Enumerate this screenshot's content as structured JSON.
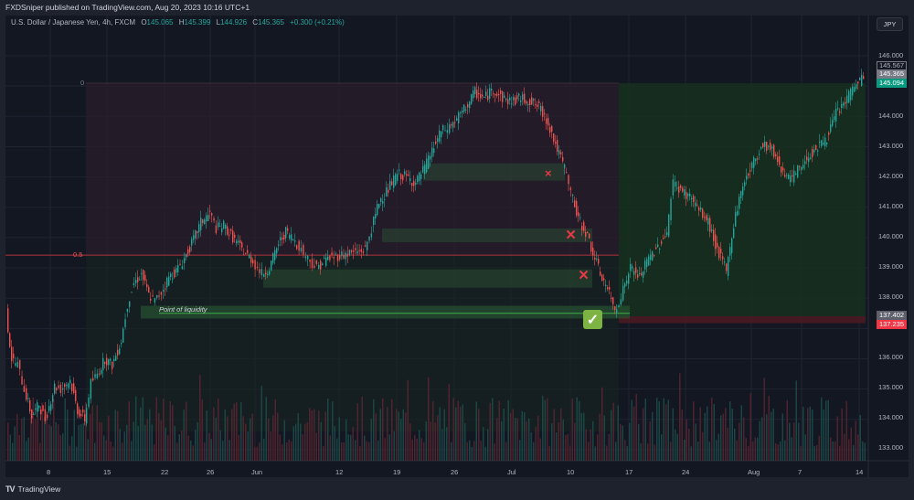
{
  "header": {
    "publish_line": "FXDSniper published on TradingView.com, Aug 20, 2023 10:16 UTC+1"
  },
  "symbol": {
    "description": "U.S. Dollar / Japanese Yen, 4h, FXCM",
    "open_label": "O",
    "open": "145.065",
    "high_label": "H",
    "high": "145.399",
    "low_label": "L",
    "low": "144.926",
    "close_label": "C",
    "close": "145.365",
    "change": "+0.300 (+0.21%)"
  },
  "currency_button": "JPY",
  "price_axis": {
    "ticks": [
      "146.000",
      "144.000",
      "143.000",
      "142.000",
      "141.000",
      "140.000",
      "139.000",
      "138.000",
      "136.000",
      "135.000",
      "134.000",
      "133.000"
    ],
    "tags": {
      "high_marker": "145.567",
      "last_price": "145.365",
      "target": "145.094",
      "entry": "137.402",
      "stop": "137.235"
    }
  },
  "time_axis": {
    "ticks": [
      "8",
      "15",
      "22",
      "26",
      "Jun",
      "12",
      "19",
      "26",
      "Jul",
      "10",
      "17",
      "24",
      "Aug",
      "7",
      "14"
    ]
  },
  "drawings": {
    "fib_level_0": "0",
    "fib_level_05": "0.5",
    "liquidity_label": "Point of liquidity",
    "failed_zone_marks": [
      "×",
      "×",
      "×"
    ],
    "success_mark": "✓"
  },
  "colors": {
    "bull": "#26a69a",
    "bear": "#ef5350",
    "background": "#131722",
    "target_tag": "#089981",
    "stop_tag": "#f23645",
    "last_price_tag": "#787b86",
    "check_green": "#7cb342",
    "x_red": "#e53945"
  },
  "footer": {
    "brand": "TradingView"
  }
}
